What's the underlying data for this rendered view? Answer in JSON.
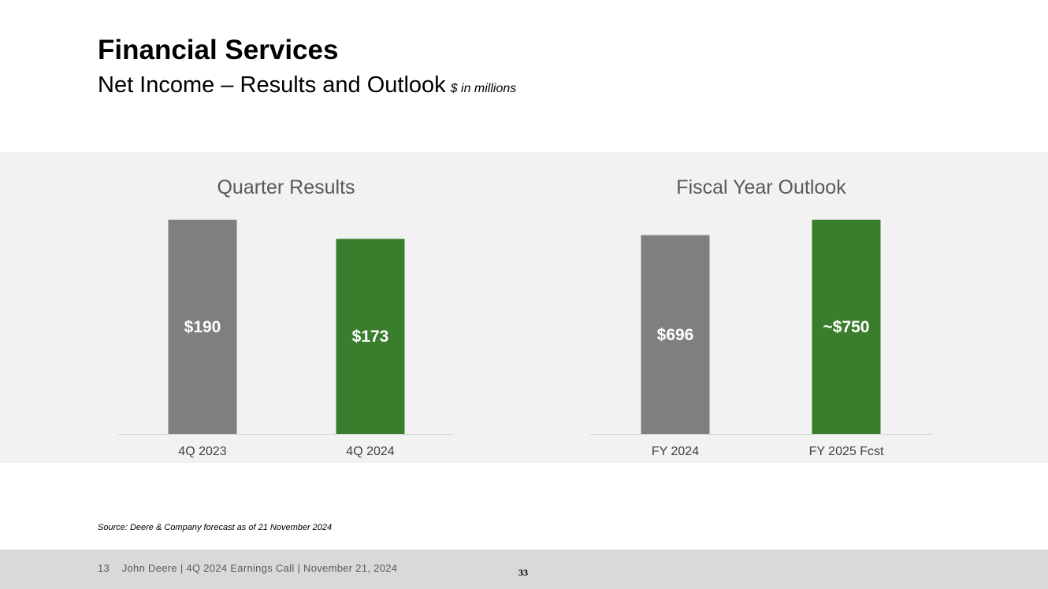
{
  "slide": {
    "title": "Financial Services",
    "subtitle": "Net Income – Results and Outlook",
    "units": "$ in millions",
    "source": "Source: Deere & Company forecast as of 21 November 2024"
  },
  "footer": {
    "page_number": "13",
    "text": "John Deere | 4Q 2024 Earnings Call | November 21, 2024",
    "center_number": "33"
  },
  "colors": {
    "gray": "#7f7f7f",
    "green": "#3a7d2c",
    "panel": "#f2f2f2"
  },
  "chart_data": [
    {
      "type": "bar",
      "title": "Quarter Results",
      "categories": [
        "4Q 2023",
        "4Q 2024"
      ],
      "values": [
        190,
        173
      ],
      "labels": [
        "$190",
        "$173"
      ],
      "colors": [
        "#7f7f7f",
        "#3a7d2c"
      ],
      "ylim": [
        0,
        190
      ]
    },
    {
      "type": "bar",
      "title": "Fiscal Year Outlook",
      "categories": [
        "FY 2024",
        "FY 2025 Fcst"
      ],
      "values": [
        696,
        750
      ],
      "labels": [
        "$696",
        "~$750"
      ],
      "colors": [
        "#7f7f7f",
        "#3a7d2c"
      ],
      "ylim": [
        0,
        750
      ]
    }
  ]
}
